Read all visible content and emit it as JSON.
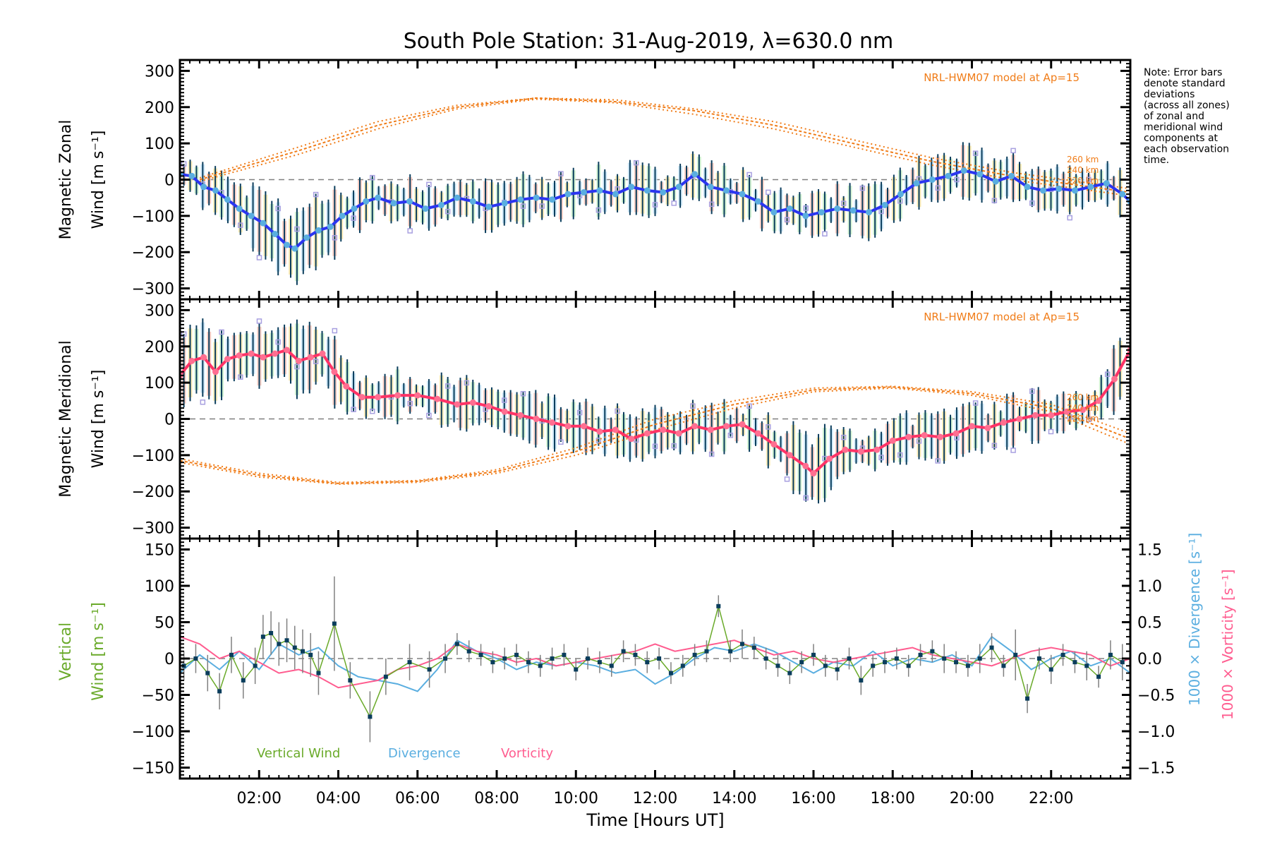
{
  "chart_data": {
    "type": "line",
    "title": "South Pole Station: 31-Aug-2019, λ=630.0 nm",
    "xlabel": "Time [Hours UT]",
    "x_range_hours": [
      0,
      24
    ],
    "x_ticks": [
      "02:00",
      "04:00",
      "06:00",
      "08:00",
      "10:00",
      "12:00",
      "14:00",
      "16:00",
      "18:00",
      "20:00",
      "22:00"
    ],
    "x_tick_hours": [
      2,
      4,
      6,
      8,
      10,
      12,
      14,
      16,
      18,
      20,
      22
    ],
    "note": [
      "Note: Error bars",
      "denote standard",
      "deviations",
      "(across all zones)",
      "of zonal and",
      "meridional wind",
      "components at",
      "each observation",
      "time."
    ],
    "colors": {
      "zonal_mean": "#2b35f0",
      "zonal_marker": "#5aaee0",
      "meridional_mean": "#ff3366",
      "meridional_marker": "#ff6f91",
      "errorbar": "#0a3d5c",
      "zone_points": "#a8a0e0",
      "model": "#f07c18",
      "vertical": "#6aaa2a",
      "vertical_marker": "#0a3d5c",
      "divergence": "#5aaee0",
      "vorticity": "#ff5c8f",
      "zero_line": "#808080",
      "vertical_err": "#808080"
    },
    "panels": [
      {
        "id": "zonal",
        "ylabel_line1": "Magnetic Zonal",
        "ylabel_line2": "Wind [m s⁻¹]",
        "ylim": [
          -330,
          330
        ],
        "yticks": [
          -300,
          -200,
          -100,
          0,
          100,
          200,
          300
        ],
        "model_label": "NRL-HWM07 model at Ap=15",
        "altitude_labels": [
          "260 km",
          "240 km",
          "220 km"
        ],
        "mean_series": {
          "name": "Magnetic Zonal Wind",
          "x": [
            0.0,
            0.3,
            0.6,
            0.9,
            1.2,
            1.5,
            1.8,
            2.1,
            2.4,
            2.7,
            2.9,
            3.2,
            3.5,
            3.8,
            4.1,
            4.4,
            4.7,
            5.0,
            5.4,
            5.8,
            6.2,
            6.6,
            7.0,
            7.4,
            7.8,
            8.2,
            8.6,
            9.0,
            9.4,
            9.8,
            10.2,
            10.6,
            11.0,
            11.4,
            11.8,
            12.2,
            12.6,
            13.0,
            13.4,
            13.8,
            14.2,
            14.6,
            15.0,
            15.4,
            15.8,
            16.2,
            16.6,
            17.0,
            17.4,
            17.8,
            18.2,
            18.6,
            19.0,
            19.4,
            19.8,
            20.2,
            20.6,
            21.0,
            21.4,
            21.8,
            22.2,
            22.6,
            23.0,
            23.4,
            23.8,
            24.0
          ],
          "y": [
            15,
            10,
            -20,
            -30,
            -55,
            -80,
            -100,
            -120,
            -150,
            -180,
            -190,
            -160,
            -140,
            -130,
            -100,
            -80,
            -60,
            -50,
            -65,
            -60,
            -80,
            -70,
            -50,
            -60,
            -75,
            -65,
            -55,
            -50,
            -55,
            -40,
            -35,
            -30,
            -40,
            -20,
            -30,
            -35,
            -20,
            15,
            -20,
            -30,
            -40,
            -60,
            -90,
            -80,
            -100,
            -90,
            -80,
            -85,
            -90,
            -70,
            -40,
            -10,
            0,
            10,
            25,
            15,
            -5,
            10,
            -20,
            -30,
            -25,
            -30,
            -20,
            -10,
            -40,
            -60
          ]
        },
        "model_curves": [
          {
            "altitude": "260 km",
            "x": [
              0.5,
              3,
              5,
              7,
              9,
              11,
              13,
              15,
              17,
              19,
              21,
              23,
              24
            ],
            "y": [
              5,
              90,
              160,
              205,
              225,
              220,
              195,
              160,
              110,
              60,
              20,
              -10,
              -25
            ]
          },
          {
            "altitude": "240 km",
            "x": [
              0.5,
              3,
              5,
              7,
              9,
              11,
              13,
              15,
              17,
              19,
              21,
              23,
              24
            ],
            "y": [
              0,
              80,
              150,
              200,
              225,
              215,
              190,
              150,
              100,
              50,
              10,
              -20,
              -35
            ]
          },
          {
            "altitude": "220 km",
            "x": [
              0.5,
              3,
              5,
              7,
              9,
              11,
              13,
              15,
              17,
              19,
              21,
              23,
              24
            ],
            "y": [
              -5,
              70,
              140,
              195,
              222,
              212,
              180,
              140,
              90,
              40,
              0,
              -30,
              -45
            ]
          }
        ]
      },
      {
        "id": "meridional",
        "ylabel_line1": "Magnetic Meridional",
        "ylabel_line2": "Wind [m s⁻¹]",
        "ylim": [
          -330,
          330
        ],
        "yticks": [
          -300,
          -200,
          -100,
          0,
          100,
          200,
          300
        ],
        "model_label": "NRL-HWM07 model at Ap=15",
        "altitude_labels": [
          "260 km",
          "240 km",
          "220 km"
        ],
        "mean_series": {
          "name": "Magnetic Meridional Wind",
          "x": [
            0.0,
            0.3,
            0.6,
            0.9,
            1.2,
            1.5,
            1.8,
            2.1,
            2.4,
            2.7,
            3.0,
            3.3,
            3.6,
            3.9,
            4.2,
            4.6,
            5.0,
            5.5,
            6.0,
            6.5,
            7.0,
            7.4,
            7.8,
            8.2,
            8.6,
            9.0,
            9.4,
            9.8,
            10.2,
            10.6,
            11.0,
            11.4,
            11.8,
            12.2,
            12.6,
            13.0,
            13.4,
            13.8,
            14.2,
            14.6,
            15.0,
            15.4,
            15.8,
            16.0,
            16.4,
            16.8,
            17.2,
            17.6,
            18.0,
            18.4,
            18.8,
            19.2,
            19.6,
            20.0,
            20.4,
            20.8,
            21.2,
            21.6,
            22.0,
            22.4,
            22.8,
            23.2,
            23.6,
            24.0
          ],
          "y": [
            120,
            160,
            170,
            130,
            165,
            175,
            180,
            170,
            180,
            190,
            160,
            170,
            180,
            130,
            90,
            60,
            60,
            65,
            65,
            55,
            40,
            45,
            35,
            20,
            10,
            0,
            -10,
            -20,
            -20,
            -35,
            -30,
            -55,
            -40,
            -30,
            -40,
            -20,
            -30,
            -20,
            -15,
            -40,
            -70,
            -100,
            -130,
            -150,
            -110,
            -85,
            -90,
            -85,
            -60,
            -50,
            -45,
            -50,
            -40,
            -20,
            -25,
            -10,
            0,
            10,
            10,
            20,
            25,
            50,
            110,
            190
          ]
        },
        "model_curves": [
          {
            "altitude": "260 km",
            "x": [
              0,
              2,
              4,
              6,
              8,
              10,
              12,
              14,
              16,
              18,
              20,
              22,
              24
            ],
            "y": [
              -110,
              -150,
              -175,
              -170,
              -140,
              -80,
              0,
              50,
              85,
              90,
              75,
              40,
              -40
            ]
          },
          {
            "altitude": "240 km",
            "x": [
              0,
              2,
              4,
              6,
              8,
              10,
              12,
              14,
              16,
              18,
              20,
              22,
              24
            ],
            "y": [
              -115,
              -155,
              -178,
              -172,
              -145,
              -90,
              -15,
              40,
              80,
              88,
              70,
              30,
              -55
            ]
          },
          {
            "altitude": "220 km",
            "x": [
              0,
              2,
              4,
              6,
              8,
              10,
              12,
              14,
              16,
              18,
              20,
              22,
              24
            ],
            "y": [
              -120,
              -160,
              -180,
              -175,
              -150,
              -100,
              -30,
              30,
              75,
              85,
              65,
              20,
              -70
            ]
          }
        ]
      },
      {
        "id": "vertical",
        "ylabel_line1": "Vertical",
        "ylabel_line2": "Wind [m s⁻¹]",
        "ylim": [
          -165,
          165
        ],
        "yticks": [
          -150,
          -100,
          -50,
          0,
          50,
          100,
          150
        ],
        "right_ylim": [
          -1.65,
          1.65
        ],
        "right_yticks": [
          "−1.5",
          "−1.0",
          "−0.5",
          "0.0",
          "0.5",
          "1.0",
          "1.5"
        ],
        "right_ylabel_divergence": "1000 × Divergence [s⁻¹]",
        "right_ylabel_vorticity": "1000 × Vorticity [s⁻¹]",
        "legend": [
          "Vertical Wind",
          "Divergence",
          "Vorticity"
        ],
        "legend_position": "bottom-left",
        "series": [
          {
            "name": "Vertical Wind",
            "x": [
              0.1,
              0.4,
              0.7,
              1.0,
              1.3,
              1.6,
              1.9,
              2.1,
              2.3,
              2.5,
              2.7,
              2.9,
              3.1,
              3.3,
              3.5,
              3.9,
              4.3,
              4.8,
              5.2,
              5.8,
              6.3,
              6.7,
              7.0,
              7.3,
              7.6,
              7.9,
              8.2,
              8.5,
              8.8,
              9.1,
              9.4,
              9.7,
              10.0,
              10.3,
              10.6,
              10.9,
              11.2,
              11.5,
              11.8,
              12.1,
              12.4,
              12.7,
              13.0,
              13.3,
              13.6,
              13.9,
              14.2,
              14.5,
              14.8,
              15.1,
              15.4,
              15.7,
              16.0,
              16.3,
              16.6,
              16.9,
              17.2,
              17.5,
              17.8,
              18.1,
              18.4,
              18.7,
              19.0,
              19.3,
              19.6,
              19.9,
              20.2,
              20.5,
              20.8,
              21.1,
              21.4,
              21.7,
              22.0,
              22.3,
              22.6,
              22.9,
              23.2,
              23.5,
              23.8
            ],
            "y": [
              -10,
              0,
              -20,
              -45,
              5,
              -30,
              -10,
              30,
              35,
              20,
              25,
              15,
              10,
              5,
              -20,
              48,
              -30,
              -80,
              -25,
              -5,
              -15,
              0,
              20,
              10,
              5,
              -5,
              0,
              5,
              -5,
              -10,
              0,
              5,
              -15,
              0,
              -5,
              -10,
              10,
              5,
              -5,
              0,
              -20,
              -10,
              5,
              10,
              72,
              10,
              20,
              15,
              0,
              -10,
              -20,
              -5,
              5,
              -10,
              -15,
              0,
              -30,
              -10,
              -5,
              0,
              -10,
              5,
              10,
              0,
              -5,
              -10,
              0,
              15,
              -10,
              5,
              -55,
              0,
              -15,
              5,
              -5,
              -10,
              -25,
              5,
              -5
            ],
            "err": [
              20,
              20,
              25,
              25,
              25,
              25,
              25,
              30,
              30,
              30,
              30,
              30,
              30,
              30,
              30,
              65,
              25,
              35,
              25,
              25,
              25,
              20,
              15,
              15,
              15,
              15,
              15,
              15,
              15,
              15,
              15,
              15,
              15,
              15,
              15,
              15,
              15,
              15,
              15,
              15,
              15,
              15,
              15,
              15,
              15,
              15,
              20,
              15,
              15,
              15,
              15,
              15,
              15,
              15,
              15,
              15,
              20,
              15,
              15,
              15,
              15,
              15,
              15,
              20,
              15,
              15,
              20,
              20,
              15,
              35,
              20,
              15,
              20,
              15,
              15,
              20,
              15,
              20,
              25
            ]
          },
          {
            "name": "Divergence",
            "x": [
              0,
              0.5,
              1,
              1.5,
              2,
              2.5,
              3,
              3.5,
              4,
              4.5,
              5,
              5.5,
              6,
              6.5,
              7,
              7.5,
              8,
              8.5,
              9,
              9.5,
              10,
              10.5,
              11,
              11.5,
              12,
              12.5,
              13,
              13.5,
              14,
              14.5,
              15,
              15.5,
              16,
              16.5,
              17,
              17.5,
              18,
              18.5,
              19,
              19.5,
              20,
              20.5,
              21,
              21.5,
              22,
              22.5,
              23,
              23.5,
              24
            ],
            "y": [
              -0.2,
              0.05,
              -0.15,
              0.1,
              -0.15,
              0.2,
              0.05,
              0.15,
              -0.1,
              -0.25,
              -0.3,
              -0.35,
              -0.45,
              -0.15,
              0.25,
              0.1,
              0.0,
              -0.15,
              -0.05,
              -0.1,
              -0.05,
              -0.1,
              -0.2,
              -0.15,
              -0.35,
              -0.2,
              0.0,
              0.15,
              0.1,
              0.2,
              0.1,
              -0.05,
              -0.2,
              -0.05,
              -0.1,
              0.1,
              -0.1,
              0.0,
              -0.05,
              0.05,
              -0.1,
              0.3,
              0.1,
              -0.15,
              0.0,
              0.1,
              -0.1,
              0.0,
              -0.2
            ]
          },
          {
            "name": "Vorticity",
            "x": [
              0,
              0.5,
              1,
              1.5,
              2,
              2.5,
              3,
              3.5,
              4,
              4.5,
              5,
              5.5,
              6,
              6.5,
              7,
              7.5,
              8,
              8.5,
              9,
              9.5,
              10,
              10.5,
              11,
              11.5,
              12,
              12.5,
              13,
              13.5,
              14,
              14.5,
              15,
              15.5,
              16,
              16.5,
              17,
              17.5,
              18,
              18.5,
              19,
              19.5,
              20,
              20.5,
              21,
              21.5,
              22,
              22.5,
              23,
              23.5,
              24
            ],
            "y": [
              0.3,
              0.2,
              0.0,
              0.1,
              -0.05,
              -0.2,
              -0.15,
              -0.25,
              -0.4,
              -0.35,
              -0.3,
              -0.15,
              -0.1,
              0.0,
              0.2,
              0.1,
              0.05,
              -0.05,
              0.0,
              -0.1,
              -0.05,
              0.0,
              0.05,
              0.1,
              0.2,
              0.1,
              0.15,
              0.2,
              0.25,
              0.15,
              0.05,
              0.1,
              0.0,
              -0.05,
              0.0,
              0.05,
              0.1,
              0.15,
              0.05,
              0.0,
              -0.05,
              -0.1,
              0.0,
              0.1,
              0.15,
              0.1,
              0.05,
              -0.1,
              0.0
            ]
          }
        ]
      }
    ]
  }
}
